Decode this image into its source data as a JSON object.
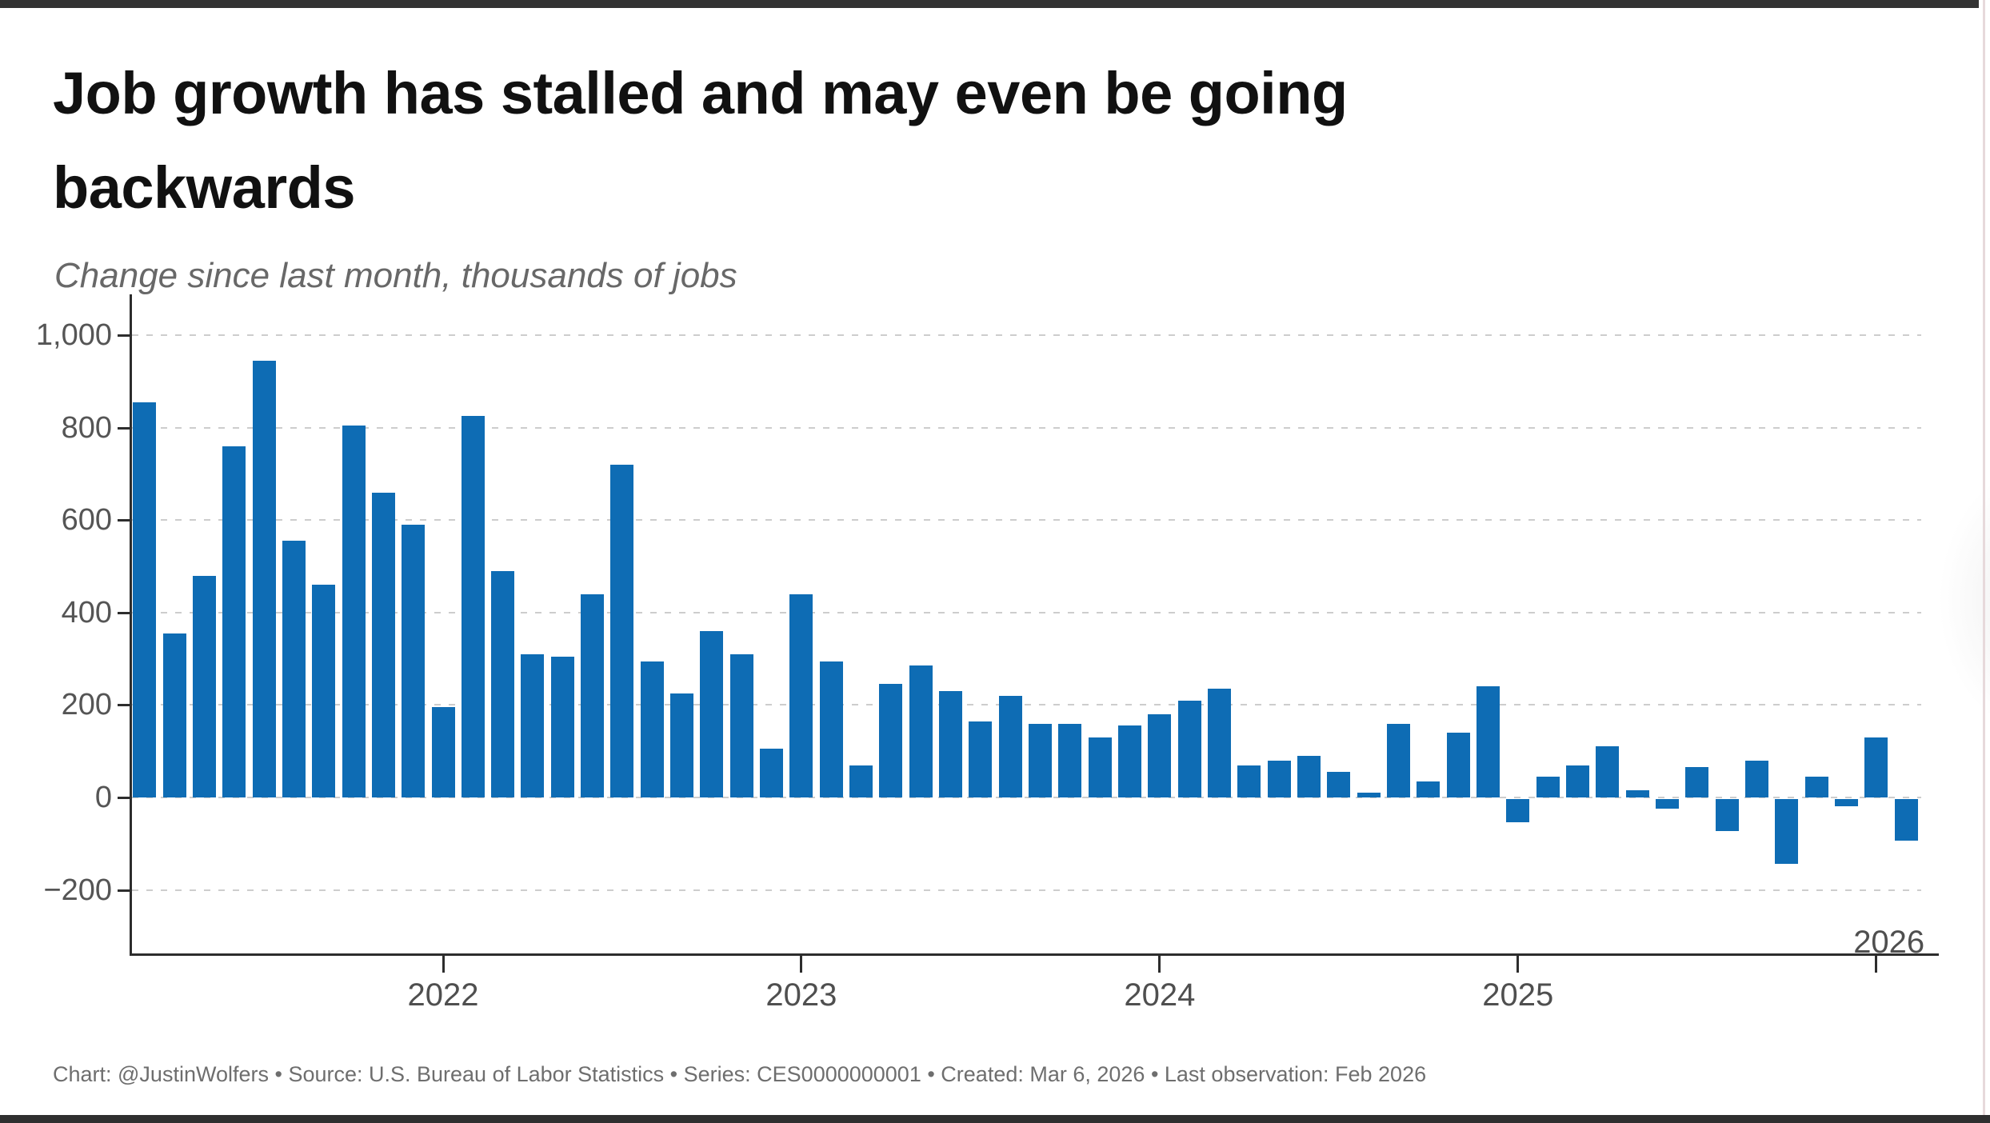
{
  "window": {
    "top_strip_color": "#333333",
    "bottom_strip_color": "#2f2f2f",
    "right_edge_line_color": "#e7d9db"
  },
  "header": {
    "title_lines": [
      "Job growth has stalled and may even be going",
      "backwards"
    ],
    "subtitle": "Change since last month, thousands of jobs"
  },
  "footer": {
    "text": "Chart: @JustinWolfers • Source: U.S. Bureau of Labor Statistics • Series: CES0000000001 • Created: Mar 6, 2026 • Last observation: Feb 2026"
  },
  "chart_data": {
    "type": "bar",
    "title": "Job growth has stalled and may even be going backwards",
    "subtitle": "Change since last month, thousands of jobs",
    "ylabel": "Change since last month, thousands of jobs",
    "xlabel": "",
    "bar_color": "#0e6cb4",
    "grid": "horizontal dashed",
    "legend": "none",
    "ylim": [
      -300,
      1080
    ],
    "y_ticks": [
      1000,
      800,
      600,
      400,
      200,
      0,
      -200
    ],
    "y_tick_labels": [
      "1,000",
      "800",
      "600",
      "400",
      "200",
      "0",
      "−200"
    ],
    "x_tick_labels": [
      "2022",
      "2023",
      "2024",
      "2025",
      "2026"
    ],
    "x": [
      "Mar 2021",
      "Apr 2021",
      "May 2021",
      "Jun 2021",
      "Jul 2021",
      "Aug 2021",
      "Sep 2021",
      "Oct 2021",
      "Nov 2021",
      "Dec 2021",
      "Jan 2022",
      "Feb 2022",
      "Mar 2022",
      "Apr 2022",
      "May 2022",
      "Jun 2022",
      "Jul 2022",
      "Aug 2022",
      "Sep 2022",
      "Oct 2022",
      "Nov 2022",
      "Dec 2022",
      "Jan 2023",
      "Feb 2023",
      "Mar 2023",
      "Apr 2023",
      "May 2023",
      "Jun 2023",
      "Jul 2023",
      "Aug 2023",
      "Sep 2023",
      "Oct 2023",
      "Nov 2023",
      "Dec 2023",
      "Jan 2024",
      "Feb 2024",
      "Mar 2024",
      "Apr 2024",
      "May 2024",
      "Jun 2024",
      "Jul 2024",
      "Aug 2024",
      "Sep 2024",
      "Oct 2024",
      "Nov 2024",
      "Dec 2024",
      "Jan 2025",
      "Feb 2025",
      "Mar 2025",
      "Apr 2025",
      "May 2025",
      "Jun 2025",
      "Jul 2025",
      "Aug 2025",
      "Sep 2025",
      "Oct 2025",
      "Nov 2025",
      "Dec 2025",
      "Jan 2026",
      "Feb 2026"
    ],
    "values": [
      855,
      355,
      480,
      760,
      945,
      555,
      460,
      805,
      660,
      590,
      195,
      825,
      490,
      310,
      305,
      440,
      720,
      295,
      225,
      360,
      310,
      105,
      440,
      295,
      70,
      245,
      285,
      230,
      165,
      220,
      160,
      160,
      130,
      155,
      180,
      210,
      235,
      70,
      80,
      90,
      55,
      10,
      160,
      35,
      140,
      240,
      -50,
      45,
      70,
      110,
      15,
      -20,
      65,
      -70,
      80,
      -140,
      45,
      -15,
      130,
      -90
    ]
  }
}
